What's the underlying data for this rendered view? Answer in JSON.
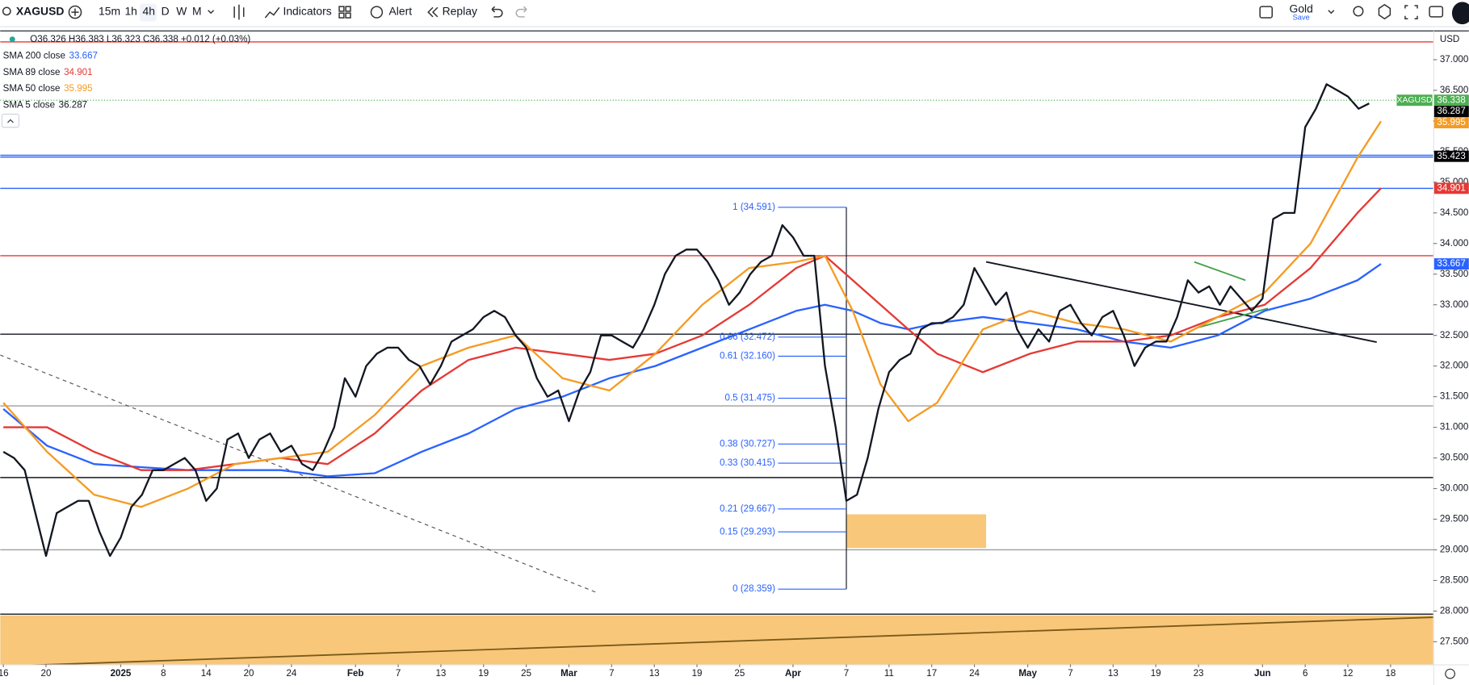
{
  "toolbar": {
    "symbol": "XAGUSD",
    "intervals": [
      "15m",
      "1h",
      "4h",
      "D",
      "W",
      "M"
    ],
    "indicators": "Indicators",
    "alert": "Alert",
    "replay": "Replay",
    "layout_name": "Gold",
    "layout_status": "Save"
  },
  "chart_data": {
    "type": "line",
    "ohlc_legend": "O36.326 H36.383 L36.323 C36.338 +0.012 (+0.03%)",
    "currency": "USD",
    "xlim": [
      -0.3,
      134
    ],
    "xticks": [
      {
        "value": 0,
        "label": "16"
      },
      {
        "value": 4,
        "label": "20"
      },
      {
        "value": 11,
        "label": "2025"
      },
      {
        "value": 15,
        "label": "8"
      },
      {
        "value": 19,
        "label": "14"
      },
      {
        "value": 23,
        "label": "20"
      },
      {
        "value": 27,
        "label": "24"
      },
      {
        "value": 33,
        "label": "Feb"
      },
      {
        "value": 37,
        "label": "7"
      },
      {
        "value": 41,
        "label": "13"
      },
      {
        "value": 45,
        "label": "19"
      },
      {
        "value": 49,
        "label": "25"
      },
      {
        "value": 53,
        "label": "Mar"
      },
      {
        "value": 57,
        "label": "7"
      },
      {
        "value": 61,
        "label": "13"
      },
      {
        "value": 65,
        "label": "19"
      },
      {
        "value": 69,
        "label": "25"
      },
      {
        "value": 74,
        "label": "Apr"
      },
      {
        "value": 79,
        "label": "7"
      },
      {
        "value": 83,
        "label": "11"
      },
      {
        "value": 87,
        "label": "17"
      },
      {
        "value": 91,
        "label": "24"
      },
      {
        "value": 96,
        "label": "May"
      },
      {
        "value": 100,
        "label": "7"
      },
      {
        "value": 104,
        "label": "13"
      },
      {
        "value": 108,
        "label": "19"
      },
      {
        "value": 112,
        "label": "23"
      },
      {
        "value": 118,
        "label": "Jun"
      },
      {
        "value": 122,
        "label": "6"
      },
      {
        "value": 126,
        "label": "12"
      },
      {
        "value": 130,
        "label": "18"
      }
    ],
    "ylim": [
      27.13,
      37.47
    ],
    "yticks": [
      {
        "value": 27.5,
        "label": "27.500"
      },
      {
        "value": 28,
        "label": "28.000"
      },
      {
        "value": 28.5,
        "label": "28.500"
      },
      {
        "value": 29,
        "label": "29.000"
      },
      {
        "value": 29.5,
        "label": "29.500"
      },
      {
        "value": 30,
        "label": "30.000"
      },
      {
        "value": 30.5,
        "label": "30.500"
      },
      {
        "value": 31,
        "label": "31.000"
      },
      {
        "value": 31.5,
        "label": "31.500"
      },
      {
        "value": 32,
        "label": "32.000"
      },
      {
        "value": 32.5,
        "label": "32.500"
      },
      {
        "value": 33,
        "label": "33.000"
      },
      {
        "value": 33.5,
        "label": "33.500"
      },
      {
        "value": 34,
        "label": "34.000"
      },
      {
        "value": 34.5,
        "label": "34.500"
      },
      {
        "value": 35,
        "label": "35.000"
      },
      {
        "value": 35.5,
        "label": "35.500"
      },
      {
        "value": 36,
        "label": "36.000"
      },
      {
        "value": 36.5,
        "label": "36.500"
      },
      {
        "value": 37,
        "label": "37.000"
      }
    ],
    "series": [
      {
        "name": "SMA 200 close",
        "color": "#2962ff",
        "legend_value": 33.667,
        "x": [
          0,
          4.1,
          8.5,
          12.9,
          17.3,
          21.7,
          26,
          30.4,
          34.8,
          39.2,
          43.6,
          48,
          52.4,
          56.8,
          61.1,
          65.5,
          69.9,
          74.3,
          77,
          79.6,
          82.2,
          84.8,
          87.5,
          91.8,
          96.2,
          100.6,
          105,
          109.4,
          113.8,
          118.2,
          122.5,
          126.9,
          129.1
        ],
        "values": [
          31.3,
          30.7,
          30.4,
          30.35,
          30.3,
          30.3,
          30.3,
          30.2,
          30.25,
          30.6,
          30.9,
          31.3,
          31.5,
          31.8,
          32.0,
          32.3,
          32.6,
          32.9,
          33.0,
          32.9,
          32.7,
          32.6,
          32.7,
          32.8,
          32.7,
          32.6,
          32.4,
          32.3,
          32.5,
          32.9,
          33.1,
          33.4,
          33.667
        ]
      },
      {
        "name": "SMA 89 close",
        "color": "#e53935",
        "legend_value": 34.901,
        "x": [
          0,
          4.1,
          8.5,
          12.9,
          17.3,
          21.7,
          26,
          30.4,
          34.8,
          39.2,
          43.6,
          48,
          52.4,
          56.8,
          61.1,
          65.5,
          69.9,
          74.3,
          77,
          79.6,
          82.2,
          84.8,
          87.5,
          91.8,
          96.2,
          100.6,
          105,
          109.4,
          113.8,
          118.2,
          122.5,
          126.9,
          129.1
        ],
        "values": [
          31.0,
          31.0,
          30.6,
          30.3,
          30.3,
          30.4,
          30.5,
          30.4,
          30.9,
          31.6,
          32.1,
          32.3,
          32.2,
          32.1,
          32.2,
          32.5,
          33.0,
          33.6,
          33.8,
          33.4,
          33.0,
          32.6,
          32.2,
          31.9,
          32.2,
          32.4,
          32.4,
          32.5,
          32.8,
          33.0,
          33.6,
          34.5,
          34.901
        ]
      },
      {
        "name": "SMA 50 close",
        "color": "#f59b23",
        "legend_value": 35.995,
        "x": [
          0,
          4.1,
          8.5,
          12.9,
          17.3,
          21.7,
          26,
          30.4,
          34.8,
          39.2,
          43.6,
          48,
          52.4,
          56.8,
          61.1,
          65.5,
          69.9,
          74.3,
          77,
          79.6,
          82.2,
          84.8,
          87.5,
          91.8,
          96.2,
          100.6,
          105,
          109.4,
          113.8,
          118.2,
          122.5,
          126.9,
          129.1
        ],
        "values": [
          31.4,
          30.6,
          29.9,
          29.7,
          30.0,
          30.4,
          30.5,
          30.6,
          31.2,
          32.0,
          32.3,
          32.5,
          31.8,
          31.6,
          32.2,
          33.0,
          33.6,
          33.7,
          33.8,
          32.9,
          31.7,
          31.1,
          31.4,
          32.6,
          32.9,
          32.7,
          32.6,
          32.4,
          32.8,
          33.2,
          34.0,
          35.4,
          35.995
        ]
      },
      {
        "name": "SMA 5 close",
        "color": "#131722",
        "legend_value": 36.287,
        "x": [
          0,
          1,
          2,
          3,
          4,
          5,
          6,
          7,
          8,
          9,
          10,
          11,
          12,
          13,
          14,
          15,
          16,
          17,
          18,
          19,
          20,
          21,
          22,
          23,
          24,
          25,
          26,
          27,
          28,
          29,
          30,
          31,
          32,
          33,
          34,
          35,
          36,
          37,
          38,
          39,
          40,
          41,
          42,
          43,
          44,
          45,
          46,
          47,
          48,
          49,
          50,
          51,
          52,
          53,
          54,
          55,
          56,
          57,
          58,
          59,
          60,
          61,
          62,
          63,
          64,
          65,
          66,
          67,
          68,
          69,
          70,
          71,
          72,
          73,
          74,
          75,
          76,
          77,
          78,
          79,
          80,
          81,
          82,
          83,
          84,
          85,
          86,
          87,
          88,
          89,
          90,
          91,
          92,
          93,
          94,
          95,
          96,
          97,
          98,
          99,
          100,
          101,
          102,
          103,
          104,
          105,
          106,
          107,
          108,
          109,
          110,
          111,
          112,
          113,
          114,
          115,
          116,
          117,
          118,
          119,
          120,
          121,
          122,
          123,
          124,
          125,
          126,
          127,
          128
        ],
        "values": [
          30.6,
          30.5,
          30.3,
          29.6,
          28.9,
          29.6,
          29.7,
          29.8,
          29.8,
          29.3,
          28.9,
          29.2,
          29.7,
          29.9,
          30.3,
          30.3,
          30.4,
          30.5,
          30.3,
          29.8,
          30.0,
          30.8,
          30.9,
          30.5,
          30.8,
          30.9,
          30.6,
          30.7,
          30.4,
          30.3,
          30.6,
          31.0,
          31.8,
          31.5,
          32.0,
          32.2,
          32.3,
          32.3,
          32.1,
          32.0,
          31.7,
          32.0,
          32.4,
          32.5,
          32.6,
          32.8,
          32.9,
          32.8,
          32.5,
          32.3,
          31.8,
          31.5,
          31.6,
          31.1,
          31.6,
          31.9,
          32.5,
          32.5,
          32.4,
          32.3,
          32.6,
          33.0,
          33.5,
          33.8,
          33.9,
          33.9,
          33.7,
          33.4,
          33.0,
          33.2,
          33.5,
          33.7,
          33.8,
          34.3,
          34.1,
          33.8,
          33.8,
          32.0,
          31.0,
          29.8,
          29.9,
          30.5,
          31.3,
          31.9,
          32.1,
          32.2,
          32.6,
          32.7,
          32.7,
          32.8,
          33.0,
          33.6,
          33.3,
          33.0,
          33.2,
          32.6,
          32.3,
          32.6,
          32.4,
          32.9,
          33.0,
          32.7,
          32.5,
          32.8,
          32.9,
          32.5,
          32.0,
          32.3,
          32.4,
          32.4,
          32.8,
          33.4,
          33.2,
          33.3,
          33.0,
          33.3,
          33.1,
          32.9,
          33.1,
          34.4,
          34.5,
          34.5,
          35.9,
          36.2,
          36.6,
          36.5,
          36.4,
          36.2,
          36.287
        ]
      }
    ],
    "horizontal_lines": [
      {
        "value": 37.29,
        "color": "#e53935"
      },
      {
        "value": 35.44,
        "color": "#2962ff"
      },
      {
        "value": 35.41,
        "color": "#2962ff"
      },
      {
        "value": 34.9,
        "color": "#2962ff"
      },
      {
        "value": 33.8,
        "color": "#e53935"
      },
      {
        "value": 32.52,
        "color": "#131722"
      },
      {
        "value": 31.35,
        "color": "#9e9e9e"
      },
      {
        "value": 30.18,
        "color": "#131722"
      },
      {
        "value": 29.0,
        "color": "#9e9e9e"
      },
      {
        "value": 27.95,
        "color": "#131722"
      }
    ],
    "zones": [
      {
        "x": [
          79,
          92.1
        ],
        "values": [
          29.03,
          29.58
        ],
        "color": "#f9c77a"
      },
      {
        "x": [
          -0.3,
          134
        ],
        "values": [
          27.13,
          27.93
        ],
        "color": "#f9c77a"
      }
    ],
    "trend_lines": [
      {
        "x": [
          92.1,
          128.7
        ],
        "values": [
          33.7,
          32.39
        ],
        "color": "#131722",
        "dashed": false
      },
      {
        "x": [
          -0.3,
          55.5
        ],
        "values": [
          32.18,
          28.31
        ],
        "color": "#555555",
        "dashed": true
      },
      {
        "x": [
          111.6,
          116.4
        ],
        "values": [
          33.7,
          33.4
        ],
        "color": "#43a047",
        "dashed": false
      },
      {
        "x": [
          112,
          118.5
        ],
        "values": [
          32.63,
          32.94
        ],
        "color": "#43a047",
        "dashed": false
      },
      {
        "x": [
          -0.3,
          134
        ],
        "values": [
          27.1,
          27.9
        ],
        "color": "#7a5a1a",
        "dashed": false
      }
    ],
    "fib_x": [
      72.6,
      79
    ],
    "fib_levels": [
      {
        "value": 34.591,
        "label": "1 (34.591)"
      },
      {
        "value": 32.472,
        "label": "0.66 (32.472)"
      },
      {
        "value": 32.16,
        "label": "0.61 (32.160)"
      },
      {
        "value": 31.475,
        "label": "0.5 (31.475)"
      },
      {
        "value": 30.727,
        "label": "0.38 (30.727)"
      },
      {
        "value": 30.415,
        "label": "0.33 (30.415)"
      },
      {
        "value": 29.667,
        "label": "0.21 (29.667)"
      },
      {
        "value": 29.293,
        "label": "0.15 (29.293)"
      },
      {
        "value": 28.359,
        "label": "0 (28.359)"
      }
    ],
    "fib_color": "#2962ff",
    "price_tags": [
      {
        "name": "XAGUSD",
        "value": 36.338,
        "color": "#4caf50"
      },
      {
        "value": 36.287,
        "color": "#000000"
      },
      {
        "value": 35.995,
        "color": "#f59b23"
      },
      {
        "value": 35.423,
        "color": "#000000"
      },
      {
        "value": 34.901,
        "color": "#e53935"
      },
      {
        "value": 33.667,
        "color": "#2962ff"
      }
    ]
  }
}
